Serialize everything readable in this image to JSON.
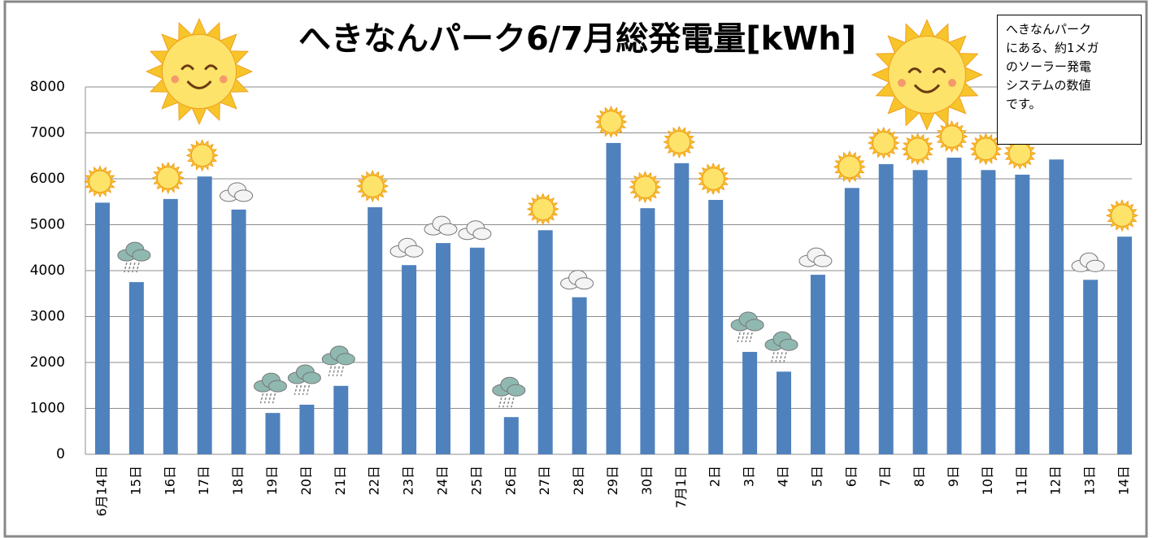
{
  "chart_data": {
    "type": "bar",
    "title": "へきなんパーク6/7月総発電量[kWh]",
    "annotation": [
      "へきなんパーク",
      "にある、約1メガ",
      "のソーラー発電",
      "システムの数値",
      "です。"
    ],
    "categories": [
      "6月14日",
      "15日",
      "16日",
      "17日",
      "18日",
      "19日",
      "20日",
      "21日",
      "22日",
      "23日",
      "24日",
      "25日",
      "26日",
      "27日",
      "28日",
      "29日",
      "30日",
      "7月1日",
      "2日",
      "3日",
      "4日",
      "5日",
      "6日",
      "7日",
      "8日",
      "9日",
      "10日",
      "11日",
      "12日",
      "13日",
      "14日"
    ],
    "values": [
      5480,
      3750,
      5560,
      6050,
      5330,
      900,
      1080,
      1490,
      5380,
      4120,
      4600,
      4500,
      810,
      4880,
      3420,
      6780,
      5360,
      6340,
      5540,
      2230,
      1800,
      3910,
      5800,
      6320,
      6190,
      6460,
      6190,
      6090,
      6420,
      3800,
      4740
    ],
    "color": "#4f81bd",
    "ylim": [
      0,
      8000
    ],
    "yticks": [
      0,
      1000,
      2000,
      3000,
      4000,
      5000,
      6000,
      7000,
      8000
    ],
    "grid": true
  }
}
